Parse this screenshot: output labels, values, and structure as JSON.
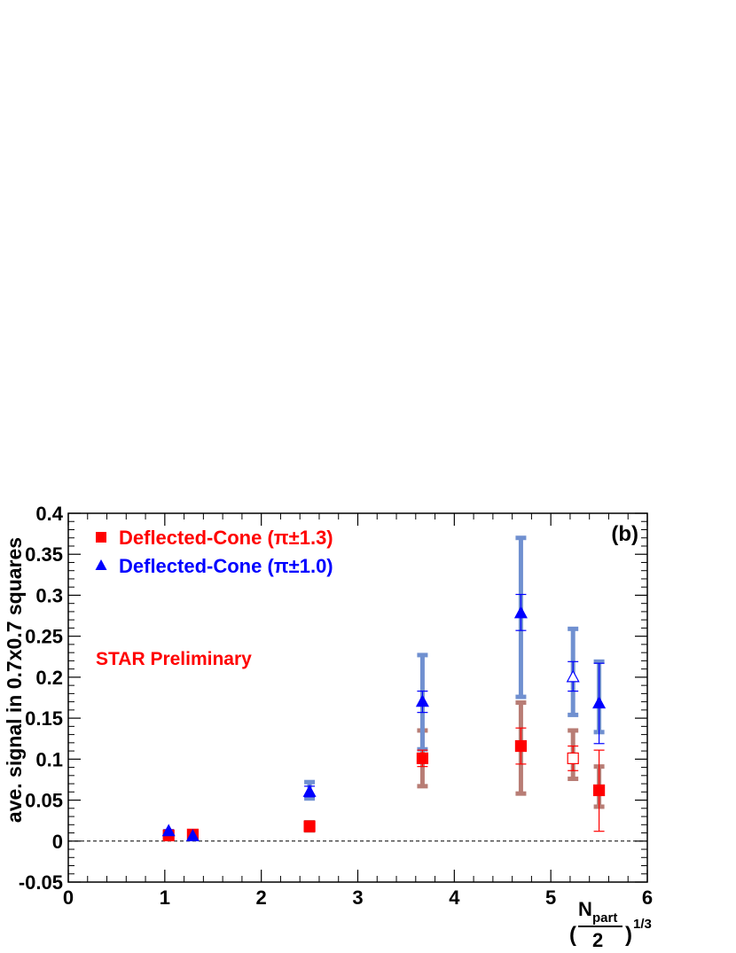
{
  "chart_data": {
    "type": "scatter",
    "panel_label": "(b)",
    "annotation": "STAR Preliminary",
    "ylabel": "ave. signal in 0.7x0.7 squares",
    "xlabel": {
      "open_paren": "(",
      "numerator": "N",
      "numerator_subscript": "part",
      "denominator": "2",
      "close_paren": ")",
      "exponent": "1/3"
    },
    "xlim": [
      0,
      6
    ],
    "ylim": [
      -0.05,
      0.4
    ],
    "x_ticks": [
      "0",
      "1",
      "2",
      "3",
      "4",
      "5",
      "6"
    ],
    "y_ticks": [
      "-0.05",
      "0",
      "0.05",
      "0.1",
      "0.15",
      "0.2",
      "0.25",
      "0.3",
      "0.35",
      "0.4"
    ],
    "reference_line_y": 0,
    "colors": {
      "red": "#ff0000",
      "blue": "#0000ff",
      "red_sys": "#b87d75",
      "blue_sys": "#7090d0",
      "annotation": "#ff0000"
    },
    "series": [
      {
        "name": "Deflected-Cone (π±1.3)",
        "marker": "square",
        "color": "#ff0000",
        "points": [
          {
            "x": 1.04,
            "y": 0.007,
            "stat": [
              0.004,
              0.01
            ],
            "sys": null,
            "open": false
          },
          {
            "x": 1.29,
            "y": 0.008,
            "stat": [
              0.005,
              0.011
            ],
            "sys": null,
            "open": false
          },
          {
            "x": 2.5,
            "y": 0.018,
            "stat": [
              0.014,
              0.022
            ],
            "sys": [
              0.013,
              0.023
            ],
            "open": false
          },
          {
            "x": 3.67,
            "y": 0.101,
            "stat": [
              0.091,
              0.111
            ],
            "sys": [
              0.067,
              0.135
            ],
            "open": false
          },
          {
            "x": 4.69,
            "y": 0.116,
            "stat": [
              0.094,
              0.138
            ],
            "sys": [
              0.058,
              0.169
            ],
            "open": false
          },
          {
            "x": 5.23,
            "y": 0.101,
            "stat": [
              0.086,
              0.116
            ],
            "sys": [
              0.076,
              0.135
            ],
            "open": true
          },
          {
            "x": 5.5,
            "y": 0.062,
            "stat": [
              0.012,
              0.111
            ],
            "sys": [
              0.042,
              0.091
            ],
            "open": false
          }
        ]
      },
      {
        "name": "Deflected-Cone (π±1.0)",
        "marker": "triangle",
        "color": "#0000ff",
        "points": [
          {
            "x": 1.04,
            "y": 0.012,
            "stat": [
              0.01,
              0.014
            ],
            "sys": null,
            "open": false
          },
          {
            "x": 1.29,
            "y": 0.006,
            "stat": [
              0.004,
              0.008
            ],
            "sys": null,
            "open": false
          },
          {
            "x": 2.5,
            "y": 0.06,
            "stat": [
              0.054,
              0.067
            ],
            "sys": [
              0.052,
              0.072
            ],
            "open": false
          },
          {
            "x": 3.67,
            "y": 0.17,
            "stat": [
              0.157,
              0.183
            ],
            "sys": [
              0.112,
              0.227
            ],
            "open": false
          },
          {
            "x": 4.69,
            "y": 0.278,
            "stat": [
              0.257,
              0.301
            ],
            "sys": [
              0.176,
              0.37
            ],
            "open": false
          },
          {
            "x": 5.23,
            "y": 0.2,
            "stat": [
              0.183,
              0.219
            ],
            "sys": [
              0.154,
              0.259
            ],
            "open": true
          },
          {
            "x": 5.5,
            "y": 0.168,
            "stat": [
              0.119,
              0.217
            ],
            "sys": [
              0.133,
              0.219
            ],
            "open": false
          }
        ]
      }
    ]
  }
}
